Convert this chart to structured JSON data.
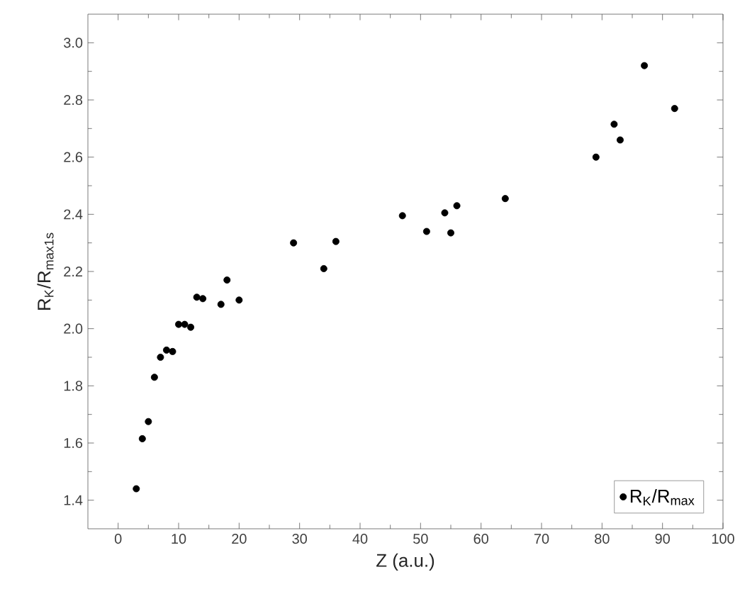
{
  "chart_data": {
    "type": "scatter",
    "xlabel": "Z (a.u.)",
    "ylabel": "R$_{K}$/R$_{max1s}$",
    "x": [
      3,
      4,
      5,
      6,
      7,
      8,
      9,
      10,
      11,
      12,
      13,
      14,
      17,
      18,
      20,
      29,
      34,
      36,
      47,
      51,
      54,
      55,
      56,
      64,
      79,
      82,
      83,
      87,
      92
    ],
    "series": [
      {
        "name": "R$_{K}$/R$_{max}$",
        "color": "#000000",
        "values": [
          1.44,
          1.615,
          1.675,
          1.83,
          1.9,
          1.925,
          1.92,
          2.015,
          2.015,
          2.005,
          2.11,
          2.105,
          2.085,
          2.17,
          2.1,
          2.3,
          2.21,
          2.305,
          2.395,
          2.34,
          2.405,
          2.335,
          2.43,
          2.455,
          2.6,
          2.715,
          2.66,
          2.92,
          2.77
        ]
      }
    ],
    "xlim": [
      -5,
      100
    ],
    "ylim": [
      1.3,
      3.1
    ],
    "xticks": [
      0,
      10,
      20,
      30,
      40,
      50,
      60,
      70,
      80,
      90,
      100
    ],
    "yticks": [
      {
        "value": 1.4,
        "label": "1.4"
      },
      {
        "value": 1.6,
        "label": "1.6"
      },
      {
        "value": 1.8,
        "label": "1.8"
      },
      {
        "value": 2.0,
        "label": "2.0"
      },
      {
        "value": 2.2,
        "label": "2.2"
      },
      {
        "value": 2.4,
        "label": "2.4"
      },
      {
        "value": 2.6,
        "label": "2.6"
      },
      {
        "value": 2.8,
        "label": "2.8"
      },
      {
        "value": 3.0,
        "label": "3.0"
      }
    ],
    "grid": false,
    "legend": "bottom right",
    "marker": "circle"
  }
}
